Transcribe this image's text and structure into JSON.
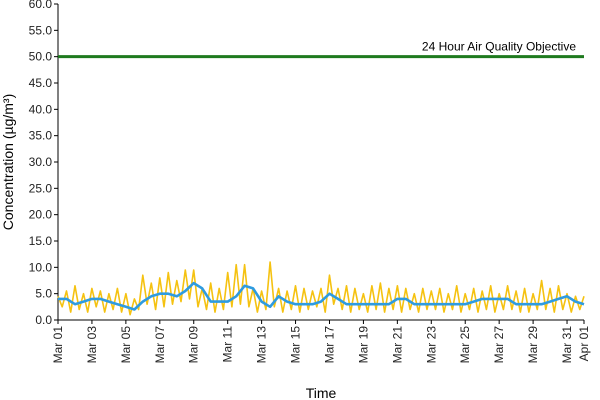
{
  "chart_data": {
    "type": "line",
    "title": "",
    "xlabel": "Time",
    "ylabel": "Concentration (µg/m³)",
    "ylim": [
      0,
      60
    ],
    "y_ticks": [
      "0.0",
      "5.0",
      "10.0",
      "15.0",
      "20.0",
      "25.0",
      "30.0",
      "35.0",
      "40.0",
      "45.0",
      "50.0",
      "55.0",
      "60.0"
    ],
    "xlim_days": [
      0,
      31
    ],
    "x_ticks": [
      "Mar 01",
      "Mar 03",
      "Mar 05",
      "Mar 07",
      "Mar 09",
      "Mar 11",
      "Mar 13",
      "Mar 15",
      "Mar 17",
      "Mar 19",
      "Mar 21",
      "Mar 23",
      "Mar 25",
      "Mar 27",
      "Mar 29",
      "Mar 31",
      "Apr 01"
    ],
    "x_tick_days": [
      0,
      2,
      4,
      6,
      8,
      10,
      12,
      14,
      16,
      18,
      20,
      22,
      24,
      26,
      28,
      30,
      31
    ],
    "grid": false,
    "legend": "none",
    "series": [
      {
        "name": "",
        "color": "#f5c211",
        "x": [
          0,
          0.25,
          0.5,
          0.75,
          1,
          1.25,
          1.5,
          1.75,
          2,
          2.25,
          2.5,
          2.75,
          3,
          3.25,
          3.5,
          3.75,
          4,
          4.25,
          4.5,
          4.75,
          5,
          5.25,
          5.5,
          5.75,
          6,
          6.25,
          6.5,
          6.75,
          7,
          7.25,
          7.5,
          7.75,
          8,
          8.25,
          8.5,
          8.75,
          9,
          9.25,
          9.5,
          9.75,
          10,
          10.25,
          10.5,
          10.75,
          11,
          11.25,
          11.5,
          11.75,
          12,
          12.25,
          12.5,
          12.75,
          13,
          13.25,
          13.5,
          13.75,
          14,
          14.25,
          14.5,
          14.75,
          15,
          15.25,
          15.5,
          15.75,
          16,
          16.25,
          16.5,
          16.75,
          17,
          17.25,
          17.5,
          17.75,
          18,
          18.25,
          18.5,
          18.75,
          19,
          19.25,
          19.5,
          19.75,
          20,
          20.25,
          20.5,
          20.75,
          21,
          21.25,
          21.5,
          21.75,
          22,
          22.25,
          22.5,
          22.75,
          23,
          23.25,
          23.5,
          23.75,
          24,
          24.25,
          24.5,
          24.75,
          25,
          25.25,
          25.5,
          25.75,
          26,
          26.25,
          26.5,
          26.75,
          27,
          27.25,
          27.5,
          27.75,
          28,
          28.25,
          28.5,
          28.75,
          29,
          29.25,
          29.5,
          29.75,
          30,
          30.25,
          30.5,
          30.75,
          31
        ],
        "values": [
          4.5,
          2.5,
          5.5,
          1.5,
          6.5,
          2,
          5,
          1.5,
          6,
          2.5,
          5.5,
          1.5,
          5,
          2,
          6,
          1.5,
          5,
          1,
          4,
          2,
          8.5,
          3,
          7,
          2,
          8,
          2.5,
          9,
          3,
          7.5,
          3.5,
          9.5,
          4,
          9.5,
          2.5,
          6,
          2,
          7,
          1.5,
          6,
          2,
          9,
          2.5,
          10.5,
          3,
          10.5,
          2.5,
          6,
          1.5,
          5.5,
          2,
          11,
          2.5,
          6,
          1.5,
          5.5,
          2,
          6.5,
          1.5,
          6,
          2,
          5.5,
          2.5,
          6,
          1.5,
          8.5,
          3,
          6,
          2,
          6.5,
          1.5,
          6,
          2,
          5,
          1.5,
          6.5,
          2,
          7,
          1.5,
          6,
          2,
          6.5,
          1.5,
          6,
          2,
          5,
          1.5,
          6,
          2,
          5.5,
          2,
          6,
          1.5,
          5,
          2,
          6.5,
          1.5,
          5,
          2,
          6,
          1.5,
          5.5,
          2,
          6.5,
          1.5,
          5,
          2,
          6.5,
          2,
          5.5,
          1.5,
          6,
          1.5,
          5,
          2,
          7.5,
          2,
          6,
          1.5,
          6.5,
          2,
          5,
          1.5,
          4.5,
          2,
          4.5
        ]
      },
      {
        "name": "",
        "color": "#2e9be0",
        "x": [
          0,
          0.5,
          1,
          1.5,
          2,
          2.5,
          3,
          3.5,
          4,
          4.5,
          5,
          5.5,
          6,
          6.5,
          7,
          7.5,
          8,
          8.5,
          9,
          9.5,
          10,
          10.5,
          11,
          11.5,
          12,
          12.5,
          13,
          13.5,
          14,
          14.5,
          15,
          15.5,
          16,
          16.5,
          17,
          17.5,
          18,
          18.5,
          19,
          19.5,
          20,
          20.5,
          21,
          21.5,
          22,
          22.5,
          23,
          23.5,
          24,
          24.5,
          25,
          25.5,
          26,
          26.5,
          27,
          27.5,
          28,
          28.5,
          29,
          29.5,
          30,
          30.5,
          31
        ],
        "values": [
          4,
          4,
          3,
          3.5,
          4,
          4,
          3.5,
          3,
          2.5,
          2,
          3.5,
          4.5,
          5,
          5,
          4.5,
          5.5,
          7,
          6,
          3.5,
          3.5,
          3.5,
          4.5,
          6.5,
          6,
          3.5,
          2.5,
          4.5,
          3.5,
          3,
          3,
          3,
          3.5,
          5,
          4,
          3,
          3,
          3,
          3,
          3,
          3,
          4,
          4,
          3,
          3,
          3,
          3,
          3,
          3,
          3,
          3.5,
          4,
          4,
          4,
          4,
          3,
          3,
          3,
          3,
          3.5,
          4,
          4.5,
          3.5,
          3
        ]
      }
    ],
    "reference_line": {
      "label": "24 Hour Air Quality Objective",
      "value": 50.0,
      "color": "#1e7a1e"
    }
  }
}
